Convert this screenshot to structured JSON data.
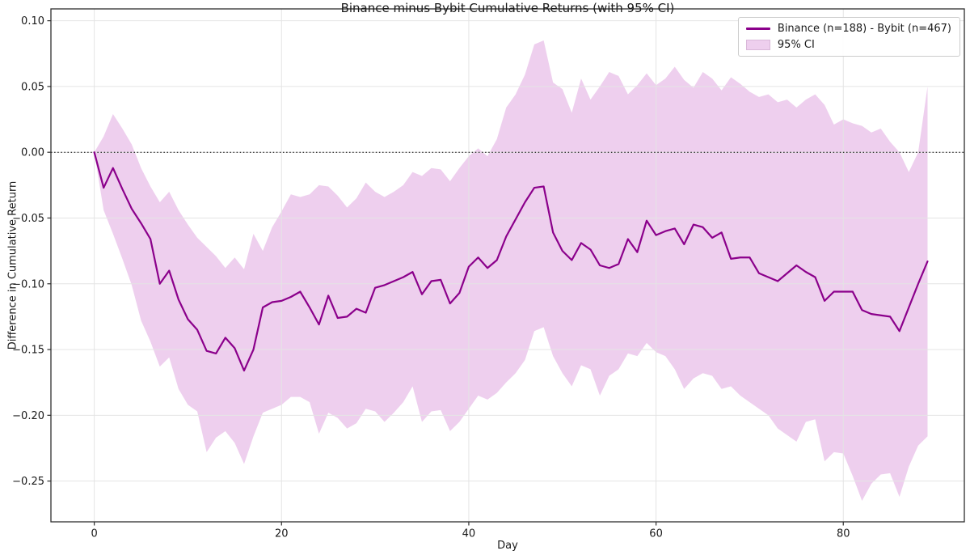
{
  "title": "Binance minus Bybit Cumulative Returns (with 95% CI)",
  "axes": {
    "xlabel": "Day",
    "ylabel": "Difference in Cumulative Return",
    "x_ticks": [
      0,
      20,
      40,
      60,
      80
    ],
    "x_tick_labels": [
      "0",
      "20",
      "40",
      "60",
      "80"
    ],
    "y_ticks": [
      0.1,
      0.05,
      0.0,
      -0.05,
      -0.1,
      -0.15,
      -0.2,
      -0.25
    ],
    "y_tick_labels": [
      "0.10",
      "0.05",
      "0.00",
      "−0.05",
      "−0.10",
      "−0.15",
      "−0.20",
      "−0.25"
    ]
  },
  "legend": {
    "items": [
      {
        "label": "Binance (n=188) - Bybit (n=467)",
        "type": "line"
      },
      {
        "label": "95% CI",
        "type": "patch"
      }
    ],
    "position": "upper right"
  },
  "colors": {
    "line": "#8B008B",
    "band_fill": "rgba(221,160,221,0.5)",
    "band_edge": "#d9b8d9",
    "grid": "#e4e4e4",
    "spine": "#2e2e2e",
    "tick": "#2e2e2e",
    "zero_line": "#000000",
    "text": "#1a1a1a",
    "legend_border": "#cccccc"
  },
  "chart_data": {
    "type": "line",
    "title": "Binance minus Bybit Cumulative Returns (with 95% CI)",
    "xlabel": "Day",
    "ylabel": "Difference in Cumulative Return",
    "xlim": [
      -4.63,
      92.93
    ],
    "ylim": [
      -0.281,
      0.109
    ],
    "grid": true,
    "zero_line": true,
    "legend_position": "upper right",
    "x": [
      0,
      1,
      2,
      3,
      4,
      5,
      6,
      7,
      8,
      9,
      10,
      11,
      12,
      13,
      14,
      15,
      16,
      17,
      18,
      19,
      20,
      21,
      22,
      23,
      24,
      25,
      26,
      27,
      28,
      29,
      30,
      31,
      32,
      33,
      34,
      35,
      36,
      37,
      38,
      39,
      40,
      41,
      42,
      43,
      44,
      45,
      46,
      47,
      48,
      49,
      50,
      51,
      52,
      53,
      54,
      55,
      56,
      57,
      58,
      59,
      60,
      61,
      62,
      63,
      64,
      65,
      66,
      67,
      68,
      69,
      70,
      71,
      72,
      73,
      74,
      75,
      76,
      77,
      78,
      79,
      80,
      81,
      82,
      83,
      84,
      85,
      86,
      87,
      88,
      89
    ],
    "series": [
      {
        "name": "Binance (n=188) - Bybit (n=467)",
        "values": [
          0.0,
          -0.027,
          -0.012,
          -0.028,
          -0.043,
          -0.054,
          -0.066,
          -0.1,
          -0.09,
          -0.112,
          -0.127,
          -0.135,
          -0.151,
          -0.153,
          -0.141,
          -0.149,
          -0.166,
          -0.15,
          -0.118,
          -0.114,
          -0.113,
          -0.11,
          -0.106,
          -0.118,
          -0.131,
          -0.109,
          -0.126,
          -0.125,
          -0.119,
          -0.122,
          -0.103,
          -0.101,
          -0.098,
          -0.095,
          -0.091,
          -0.108,
          -0.098,
          -0.097,
          -0.115,
          -0.107,
          -0.087,
          -0.08,
          -0.088,
          -0.082,
          -0.064,
          -0.051,
          -0.038,
          -0.027,
          -0.026,
          -0.061,
          -0.075,
          -0.082,
          -0.069,
          -0.074,
          -0.086,
          -0.088,
          -0.085,
          -0.066,
          -0.076,
          -0.052,
          -0.063,
          -0.06,
          -0.058,
          -0.07,
          -0.055,
          -0.057,
          -0.065,
          -0.061,
          -0.081,
          -0.08,
          -0.08,
          -0.092,
          -0.095,
          -0.098,
          -0.092,
          -0.086,
          -0.091,
          -0.095,
          -0.113,
          -0.106,
          -0.106,
          -0.106,
          -0.12,
          -0.123,
          -0.124,
          -0.125,
          -0.136,
          -0.118,
          -0.1,
          -0.083
        ]
      }
    ],
    "band": {
      "name": "95% CI",
      "upper": [
        0.0,
        0.012,
        0.029,
        0.018,
        0.006,
        -0.012,
        -0.026,
        -0.038,
        -0.03,
        -0.044,
        -0.055,
        -0.065,
        -0.072,
        -0.079,
        -0.088,
        -0.08,
        -0.089,
        -0.062,
        -0.075,
        -0.057,
        -0.045,
        -0.032,
        -0.034,
        -0.032,
        -0.025,
        -0.026,
        -0.033,
        -0.042,
        -0.035,
        -0.023,
        -0.03,
        -0.034,
        -0.03,
        -0.025,
        -0.015,
        -0.018,
        -0.012,
        -0.013,
        -0.022,
        -0.012,
        -0.003,
        0.003,
        -0.003,
        0.01,
        0.034,
        0.044,
        0.059,
        0.082,
        0.085,
        0.053,
        0.048,
        0.03,
        0.056,
        0.04,
        0.05,
        0.061,
        0.058,
        0.044,
        0.051,
        0.06,
        0.051,
        0.056,
        0.065,
        0.055,
        0.049,
        0.061,
        0.056,
        0.047,
        0.057,
        0.052,
        0.046,
        0.042,
        0.044,
        0.038,
        0.04,
        0.034,
        0.04,
        0.044,
        0.036,
        0.021,
        0.025,
        0.022,
        0.02,
        0.015,
        0.018,
        0.008,
        0.0,
        -0.015,
        0.0,
        0.05
      ],
      "lower": [
        0.0,
        -0.044,
        -0.062,
        -0.081,
        -0.101,
        -0.128,
        -0.144,
        -0.163,
        -0.156,
        -0.18,
        -0.192,
        -0.197,
        -0.228,
        -0.217,
        -0.212,
        -0.221,
        -0.237,
        -0.216,
        -0.198,
        -0.195,
        -0.192,
        -0.186,
        -0.186,
        -0.19,
        -0.214,
        -0.198,
        -0.202,
        -0.21,
        -0.206,
        -0.195,
        -0.197,
        -0.205,
        -0.198,
        -0.19,
        -0.178,
        -0.205,
        -0.197,
        -0.196,
        -0.212,
        -0.205,
        -0.195,
        -0.185,
        -0.188,
        -0.183,
        -0.175,
        -0.168,
        -0.158,
        -0.136,
        -0.133,
        -0.155,
        -0.168,
        -0.178,
        -0.162,
        -0.165,
        -0.185,
        -0.17,
        -0.165,
        -0.153,
        -0.155,
        -0.145,
        -0.152,
        -0.155,
        -0.165,
        -0.18,
        -0.172,
        -0.168,
        -0.17,
        -0.18,
        -0.178,
        -0.185,
        -0.19,
        -0.195,
        -0.2,
        -0.21,
        -0.215,
        -0.22,
        -0.205,
        -0.203,
        -0.235,
        -0.228,
        -0.229,
        -0.246,
        -0.265,
        -0.252,
        -0.245,
        -0.244,
        -0.262,
        -0.239,
        -0.223,
        -0.216
      ]
    }
  }
}
